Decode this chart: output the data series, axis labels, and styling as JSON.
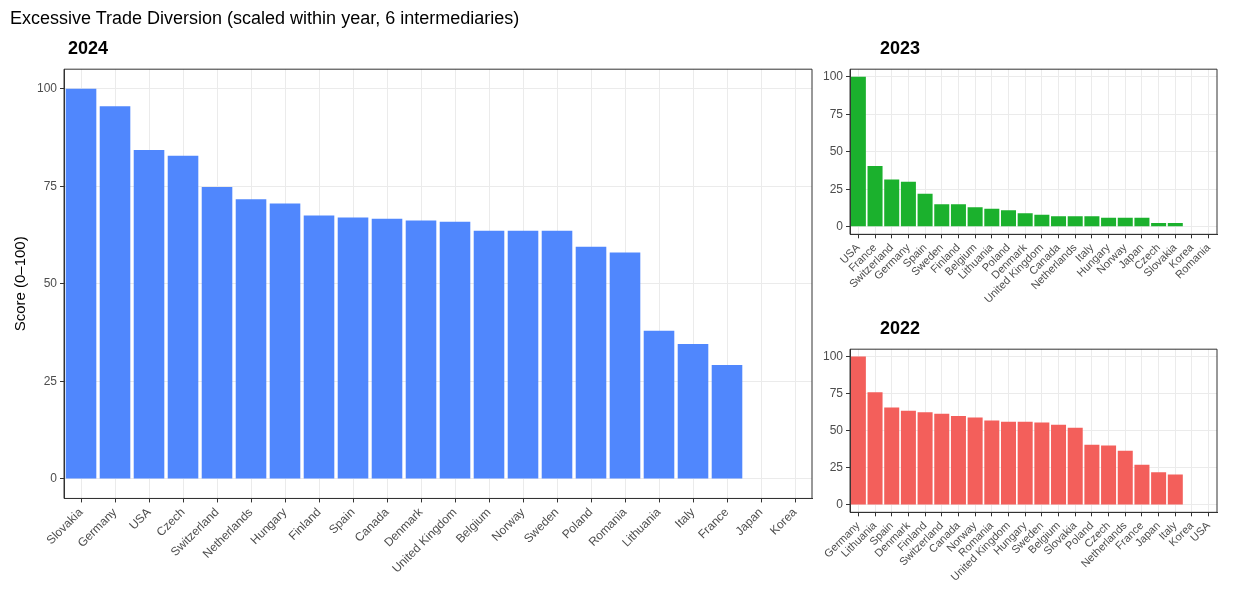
{
  "chart_data": [
    {
      "type": "bar",
      "title": "Excessive Trade Diversion (scaled within year, 6 intermediaries)",
      "subtitle": "2024",
      "ylabel": "Score (0–100)",
      "categories": [
        "Slovakia",
        "Germany",
        "USA",
        "Czech",
        "Switzerland",
        "Netherlands",
        "Hungary",
        "Finland",
        "Spain",
        "Canada",
        "Denmark",
        "United Kingdom",
        "Belgium",
        "Norway",
        "Sweden",
        "Poland",
        "Romania",
        "Lithuania",
        "Italy",
        "France",
        "Japan",
        "Korea"
      ],
      "values": [
        100,
        95.5,
        84.3,
        82.8,
        74.8,
        71.7,
        70.6,
        67.5,
        67,
        66.7,
        66.2,
        65.9,
        63.6,
        63.6,
        63.6,
        59.5,
        58,
        38,
        34.6,
        29.2,
        0,
        0
      ],
      "color": "#5087fd",
      "ylim": [
        -5,
        105
      ],
      "yticks": [
        0,
        25,
        50,
        75,
        100
      ],
      "grid": true,
      "legend": false
    },
    {
      "type": "bar",
      "subtitle": "2023",
      "categories": [
        "USA",
        "France",
        "Switzerland",
        "Germany",
        "Spain",
        "Sweden",
        "Finland",
        "Belgium",
        "Lithuania",
        "Poland",
        "Denmark",
        "United Kingdom",
        "Canada",
        "Netherlands",
        "Italy",
        "Hungary",
        "Norway",
        "Japan",
        "Czech",
        "Slovakia",
        "Korea",
        "Romania"
      ],
      "values": [
        100,
        40.5,
        31.5,
        30,
        22,
        15,
        15,
        13,
        12,
        11,
        9,
        8,
        7,
        7,
        7,
        6,
        6,
        6,
        2.5,
        2.5,
        0,
        0
      ],
      "color": "#1bb12d",
      "ylim": [
        -5,
        105
      ],
      "yticks": [
        0,
        25,
        50,
        75,
        100
      ],
      "grid": true,
      "legend": false
    },
    {
      "type": "bar",
      "subtitle": "2022",
      "categories": [
        "Germany",
        "Lithuania",
        "Spain",
        "Denmark",
        "Finland",
        "Switzerland",
        "Canada",
        "Norway",
        "Romania",
        "United Kingdom",
        "Hungary",
        "Sweden",
        "Belgium",
        "Slovakia",
        "Poland",
        "Czech",
        "Netherlands",
        "France",
        "Japan",
        "Italy",
        "Korea",
        "USA"
      ],
      "values": [
        100,
        76,
        65.7,
        63.5,
        62.5,
        61.5,
        60,
        59,
        57,
        56,
        56,
        55.5,
        54,
        52,
        40.5,
        40,
        36.5,
        27,
        22,
        20.5,
        0,
        0
      ],
      "color": "#f35f5b",
      "ylim": [
        -5,
        105
      ],
      "yticks": [
        0,
        25,
        50,
        75,
        100
      ],
      "grid": true,
      "legend": false
    }
  ]
}
